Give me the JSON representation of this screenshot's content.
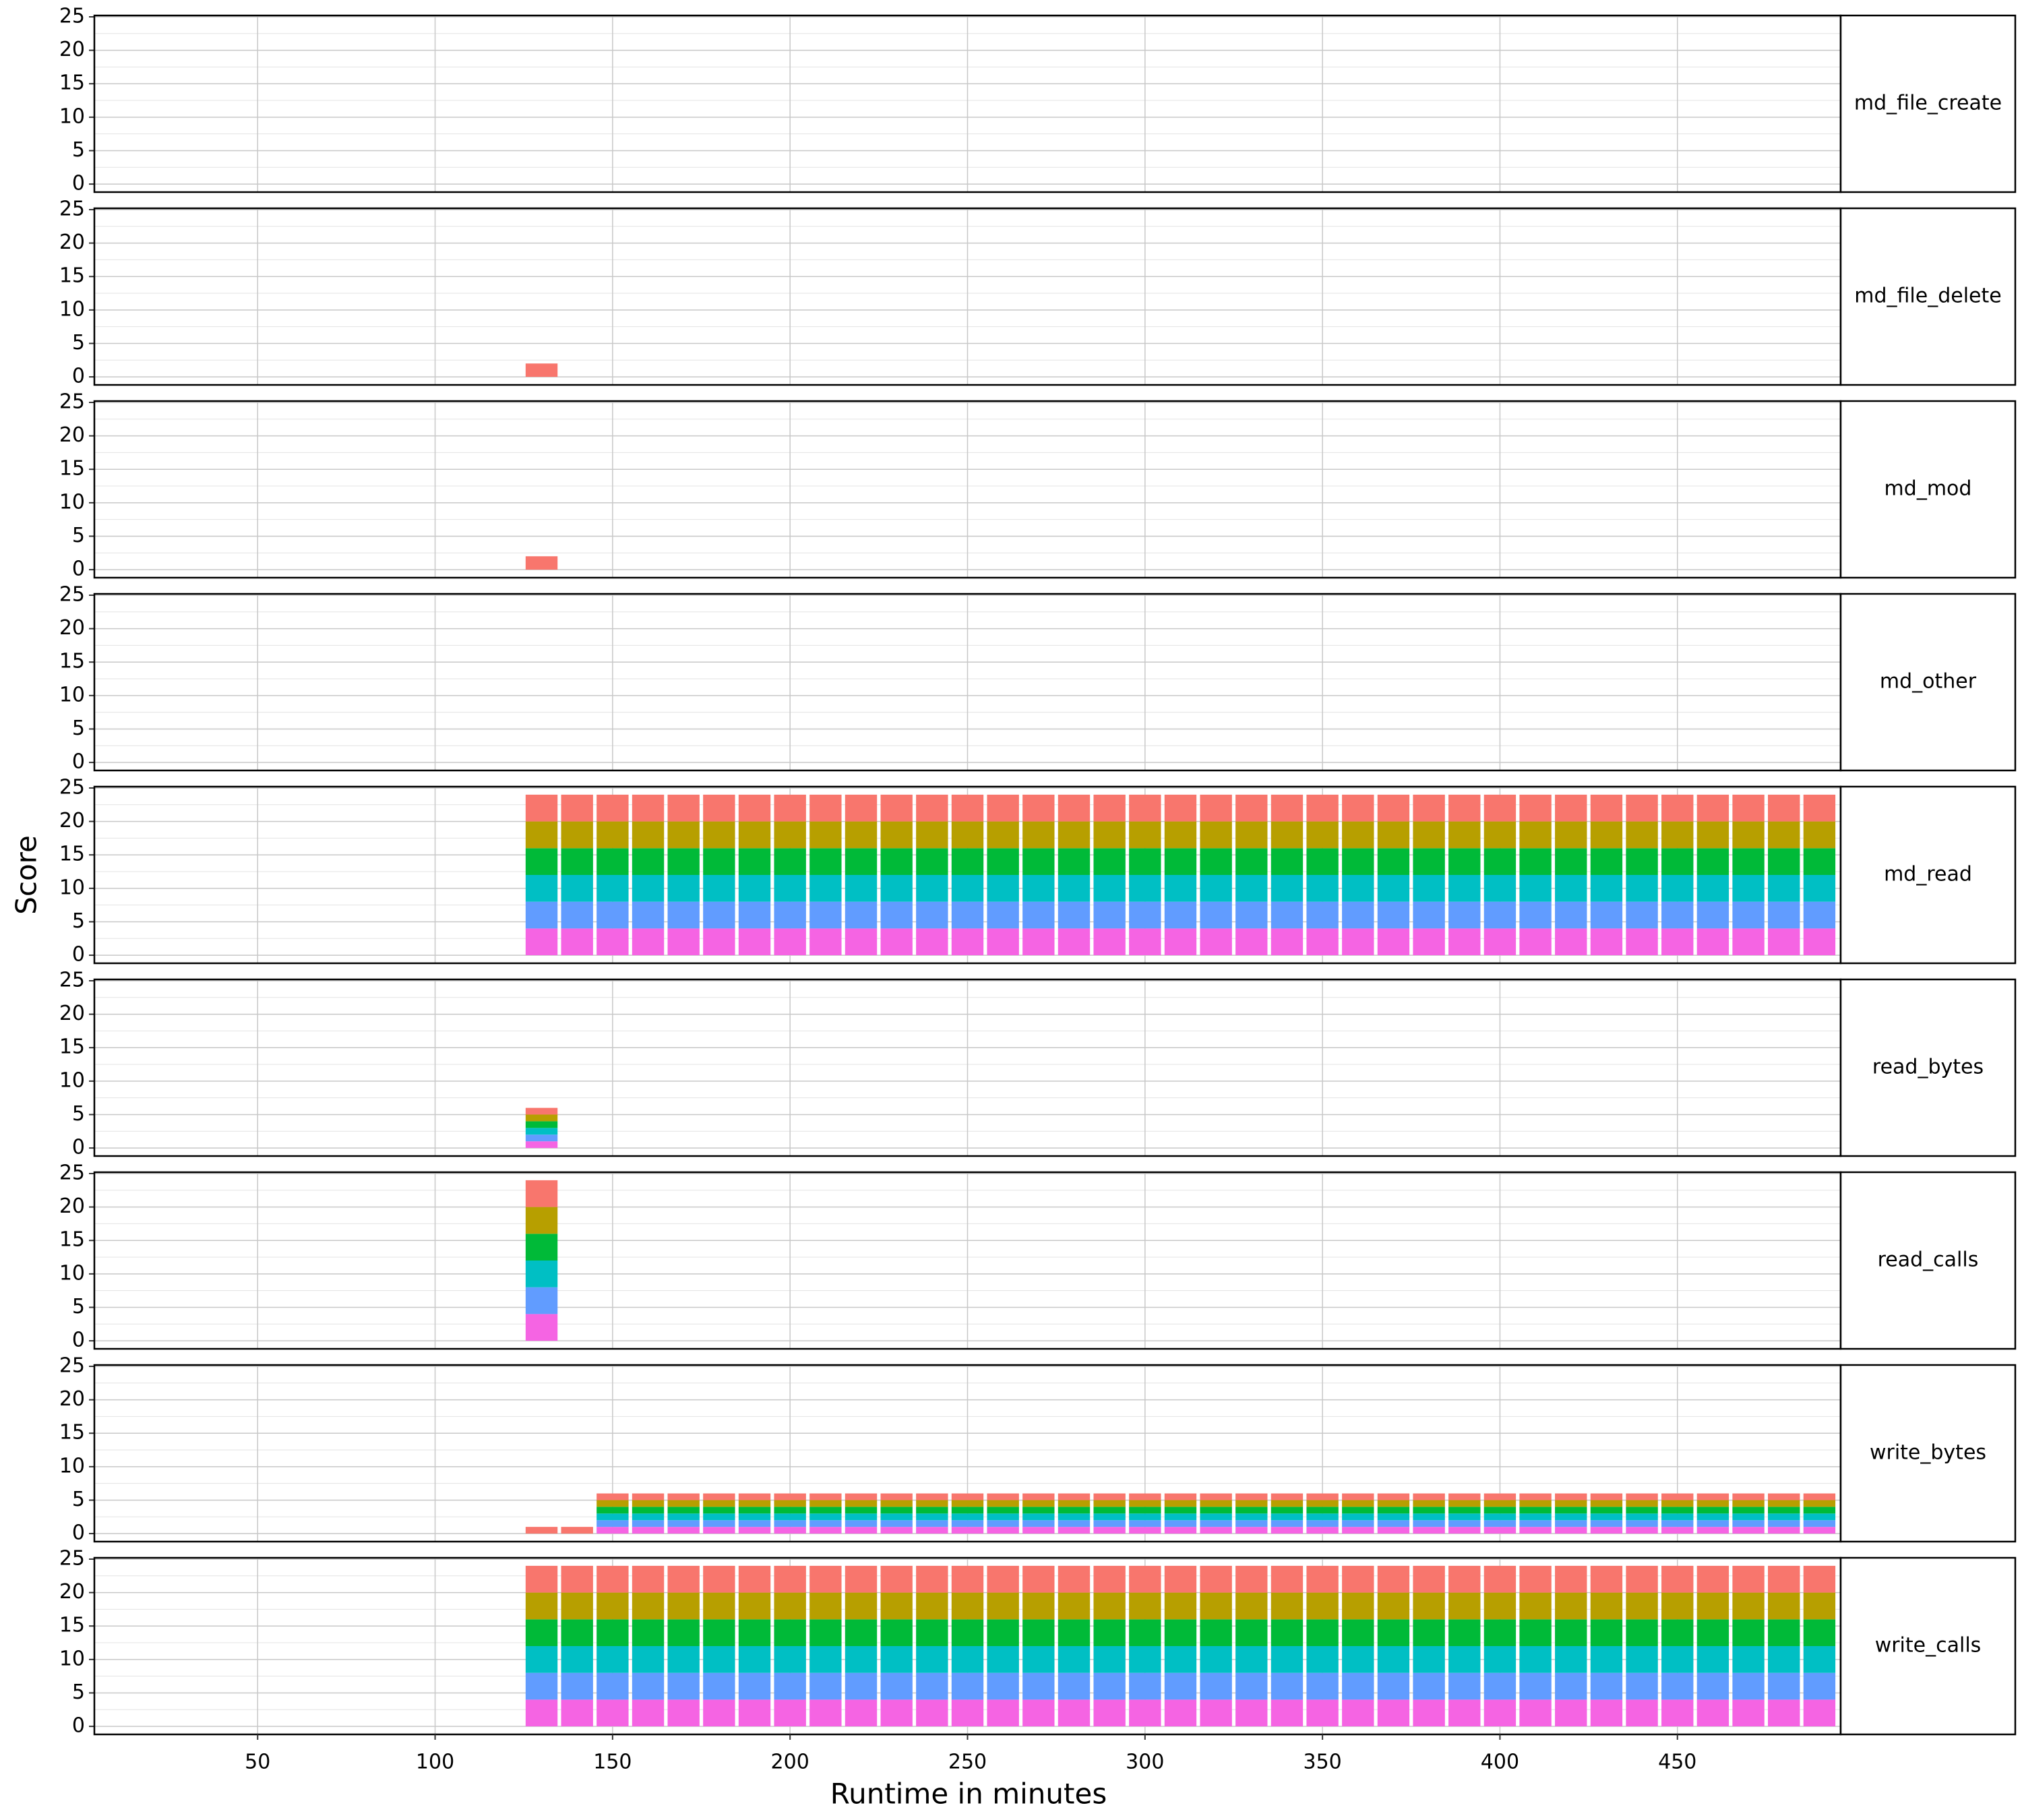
{
  "chart_data": {
    "type": "bar",
    "stacked": true,
    "xlabel": "Runtime in minutes",
    "ylabel": "Score",
    "xlim": [
      4,
      496
    ],
    "xticks": [
      50,
      100,
      150,
      200,
      250,
      300,
      350,
      400,
      450
    ],
    "ylim": [
      -1.2,
      25.2
    ],
    "yticks": [
      0,
      5,
      10,
      15,
      20,
      25
    ],
    "minor_yticks": [
      2.5,
      7.5,
      12.5,
      17.5,
      22.5
    ],
    "grid": true,
    "facets": [
      {
        "label": "md_file_create",
        "x": [],
        "series": []
      },
      {
        "label": "md_file_delete",
        "x": [
          130
        ],
        "series": [
          {
            "color": "#F564E3",
            "values": [
              0
            ]
          },
          {
            "color": "#619CFF",
            "values": [
              0
            ]
          },
          {
            "color": "#00BFC4",
            "values": [
              0
            ]
          },
          {
            "color": "#00BA38",
            "values": [
              0
            ]
          },
          {
            "color": "#B79F00",
            "values": [
              0
            ]
          },
          {
            "color": "#F8766D",
            "values": [
              2
            ]
          }
        ]
      },
      {
        "label": "md_mod",
        "x": [
          130
        ],
        "series": [
          {
            "color": "#F564E3",
            "values": [
              0
            ]
          },
          {
            "color": "#619CFF",
            "values": [
              0
            ]
          },
          {
            "color": "#00BFC4",
            "values": [
              0
            ]
          },
          {
            "color": "#00BA38",
            "values": [
              0
            ]
          },
          {
            "color": "#B79F00",
            "values": [
              0
            ]
          },
          {
            "color": "#F8766D",
            "values": [
              2
            ]
          }
        ]
      },
      {
        "label": "md_other",
        "x": [],
        "series": []
      },
      {
        "label": "md_read",
        "x": [
          130,
          140,
          150,
          160,
          170,
          180,
          190,
          200,
          210,
          220,
          230,
          240,
          250,
          260,
          270,
          280,
          290,
          300,
          310,
          320,
          330,
          340,
          350,
          360,
          370,
          380,
          390,
          400,
          410,
          420,
          430,
          440,
          450,
          460,
          470,
          480,
          490
        ],
        "series": [
          {
            "color": "#F564E3",
            "values": [
              4,
              4,
              4,
              4,
              4,
              4,
              4,
              4,
              4,
              4,
              4,
              4,
              4,
              4,
              4,
              4,
              4,
              4,
              4,
              4,
              4,
              4,
              4,
              4,
              4,
              4,
              4,
              4,
              4,
              4,
              4,
              4,
              4,
              4,
              4,
              4,
              4
            ]
          },
          {
            "color": "#619CFF",
            "values": [
              4,
              4,
              4,
              4,
              4,
              4,
              4,
              4,
              4,
              4,
              4,
              4,
              4,
              4,
              4,
              4,
              4,
              4,
              4,
              4,
              4,
              4,
              4,
              4,
              4,
              4,
              4,
              4,
              4,
              4,
              4,
              4,
              4,
              4,
              4,
              4,
              4
            ]
          },
          {
            "color": "#00BFC4",
            "values": [
              4,
              4,
              4,
              4,
              4,
              4,
              4,
              4,
              4,
              4,
              4,
              4,
              4,
              4,
              4,
              4,
              4,
              4,
              4,
              4,
              4,
              4,
              4,
              4,
              4,
              4,
              4,
              4,
              4,
              4,
              4,
              4,
              4,
              4,
              4,
              4,
              4
            ]
          },
          {
            "color": "#00BA38",
            "values": [
              4,
              4,
              4,
              4,
              4,
              4,
              4,
              4,
              4,
              4,
              4,
              4,
              4,
              4,
              4,
              4,
              4,
              4,
              4,
              4,
              4,
              4,
              4,
              4,
              4,
              4,
              4,
              4,
              4,
              4,
              4,
              4,
              4,
              4,
              4,
              4,
              4
            ]
          },
          {
            "color": "#B79F00",
            "values": [
              4,
              4,
              4,
              4,
              4,
              4,
              4,
              4,
              4,
              4,
              4,
              4,
              4,
              4,
              4,
              4,
              4,
              4,
              4,
              4,
              4,
              4,
              4,
              4,
              4,
              4,
              4,
              4,
              4,
              4,
              4,
              4,
              4,
              4,
              4,
              4,
              4
            ]
          },
          {
            "color": "#F8766D",
            "values": [
              4,
              4,
              4,
              4,
              4,
              4,
              4,
              4,
              4,
              4,
              4,
              4,
              4,
              4,
              4,
              4,
              4,
              4,
              4,
              4,
              4,
              4,
              4,
              4,
              4,
              4,
              4,
              4,
              4,
              4,
              4,
              4,
              4,
              4,
              4,
              4,
              4
            ]
          }
        ]
      },
      {
        "label": "read_bytes",
        "x": [
          130
        ],
        "series": [
          {
            "color": "#F564E3",
            "values": [
              1
            ]
          },
          {
            "color": "#619CFF",
            "values": [
              1
            ]
          },
          {
            "color": "#00BFC4",
            "values": [
              1
            ]
          },
          {
            "color": "#00BA38",
            "values": [
              1
            ]
          },
          {
            "color": "#B79F00",
            "values": [
              1
            ]
          },
          {
            "color": "#F8766D",
            "values": [
              1
            ]
          }
        ]
      },
      {
        "label": "read_calls",
        "x": [
          130
        ],
        "series": [
          {
            "color": "#F564E3",
            "values": [
              4
            ]
          },
          {
            "color": "#619CFF",
            "values": [
              4
            ]
          },
          {
            "color": "#00BFC4",
            "values": [
              4
            ]
          },
          {
            "color": "#00BA38",
            "values": [
              4
            ]
          },
          {
            "color": "#B79F00",
            "values": [
              4
            ]
          },
          {
            "color": "#F8766D",
            "values": [
              4
            ]
          }
        ]
      },
      {
        "label": "write_bytes",
        "x": [
          130,
          140,
          150,
          160,
          170,
          180,
          190,
          200,
          210,
          220,
          230,
          240,
          250,
          260,
          270,
          280,
          290,
          300,
          310,
          320,
          330,
          340,
          350,
          360,
          370,
          380,
          390,
          400,
          410,
          420,
          430,
          440,
          450,
          460,
          470,
          480,
          490
        ],
        "series": [
          {
            "color": "#F564E3",
            "values": [
              0,
              0,
              1,
              1,
              1,
              1,
              1,
              1,
              1,
              1,
              1,
              1,
              1,
              1,
              1,
              1,
              1,
              1,
              1,
              1,
              1,
              1,
              1,
              1,
              1,
              1,
              1,
              1,
              1,
              1,
              1,
              1,
              1,
              1,
              1,
              1,
              1
            ]
          },
          {
            "color": "#619CFF",
            "values": [
              0,
              0,
              1,
              1,
              1,
              1,
              1,
              1,
              1,
              1,
              1,
              1,
              1,
              1,
              1,
              1,
              1,
              1,
              1,
              1,
              1,
              1,
              1,
              1,
              1,
              1,
              1,
              1,
              1,
              1,
              1,
              1,
              1,
              1,
              1,
              1,
              1
            ]
          },
          {
            "color": "#00BFC4",
            "values": [
              0,
              0,
              1,
              1,
              1,
              1,
              1,
              1,
              1,
              1,
              1,
              1,
              1,
              1,
              1,
              1,
              1,
              1,
              1,
              1,
              1,
              1,
              1,
              1,
              1,
              1,
              1,
              1,
              1,
              1,
              1,
              1,
              1,
              1,
              1,
              1,
              1
            ]
          },
          {
            "color": "#00BA38",
            "values": [
              0,
              0,
              1,
              1,
              1,
              1,
              1,
              1,
              1,
              1,
              1,
              1,
              1,
              1,
              1,
              1,
              1,
              1,
              1,
              1,
              1,
              1,
              1,
              1,
              1,
              1,
              1,
              1,
              1,
              1,
              1,
              1,
              1,
              1,
              1,
              1,
              1
            ]
          },
          {
            "color": "#B79F00",
            "values": [
              0,
              0,
              1,
              1,
              1,
              1,
              1,
              1,
              1,
              1,
              1,
              1,
              1,
              1,
              1,
              1,
              1,
              1,
              1,
              1,
              1,
              1,
              1,
              1,
              1,
              1,
              1,
              1,
              1,
              1,
              1,
              1,
              1,
              1,
              1,
              1,
              1
            ]
          },
          {
            "color": "#F8766D",
            "values": [
              1,
              1,
              1,
              1,
              1,
              1,
              1,
              1,
              1,
              1,
              1,
              1,
              1,
              1,
              1,
              1,
              1,
              1,
              1,
              1,
              1,
              1,
              1,
              1,
              1,
              1,
              1,
              1,
              1,
              1,
              1,
              1,
              1,
              1,
              1,
              1,
              1
            ]
          }
        ]
      },
      {
        "label": "write_calls",
        "x": [
          130,
          140,
          150,
          160,
          170,
          180,
          190,
          200,
          210,
          220,
          230,
          240,
          250,
          260,
          270,
          280,
          290,
          300,
          310,
          320,
          330,
          340,
          350,
          360,
          370,
          380,
          390,
          400,
          410,
          420,
          430,
          440,
          450,
          460,
          470,
          480,
          490
        ],
        "series": [
          {
            "color": "#F564E3",
            "values": [
              4,
              4,
              4,
              4,
              4,
              4,
              4,
              4,
              4,
              4,
              4,
              4,
              4,
              4,
              4,
              4,
              4,
              4,
              4,
              4,
              4,
              4,
              4,
              4,
              4,
              4,
              4,
              4,
              4,
              4,
              4,
              4,
              4,
              4,
              4,
              4,
              4
            ]
          },
          {
            "color": "#619CFF",
            "values": [
              4,
              4,
              4,
              4,
              4,
              4,
              4,
              4,
              4,
              4,
              4,
              4,
              4,
              4,
              4,
              4,
              4,
              4,
              4,
              4,
              4,
              4,
              4,
              4,
              4,
              4,
              4,
              4,
              4,
              4,
              4,
              4,
              4,
              4,
              4,
              4,
              4
            ]
          },
          {
            "color": "#00BFC4",
            "values": [
              4,
              4,
              4,
              4,
              4,
              4,
              4,
              4,
              4,
              4,
              4,
              4,
              4,
              4,
              4,
              4,
              4,
              4,
              4,
              4,
              4,
              4,
              4,
              4,
              4,
              4,
              4,
              4,
              4,
              4,
              4,
              4,
              4,
              4,
              4,
              4,
              4
            ]
          },
          {
            "color": "#00BA38",
            "values": [
              4,
              4,
              4,
              4,
              4,
              4,
              4,
              4,
              4,
              4,
              4,
              4,
              4,
              4,
              4,
              4,
              4,
              4,
              4,
              4,
              4,
              4,
              4,
              4,
              4,
              4,
              4,
              4,
              4,
              4,
              4,
              4,
              4,
              4,
              4,
              4,
              4
            ]
          },
          {
            "color": "#B79F00",
            "values": [
              4,
              4,
              4,
              4,
              4,
              4,
              4,
              4,
              4,
              4,
              4,
              4,
              4,
              4,
              4,
              4,
              4,
              4,
              4,
              4,
              4,
              4,
              4,
              4,
              4,
              4,
              4,
              4,
              4,
              4,
              4,
              4,
              4,
              4,
              4,
              4,
              4
            ]
          },
          {
            "color": "#F8766D",
            "values": [
              4,
              4,
              4,
              4,
              4,
              4,
              4,
              4,
              4,
              4,
              4,
              4,
              4,
              4,
              4,
              4,
              4,
              4,
              4,
              4,
              4,
              4,
              4,
              4,
              4,
              4,
              4,
              4,
              4,
              4,
              4,
              4,
              4,
              4,
              4,
              4,
              4
            ]
          }
        ]
      }
    ]
  }
}
